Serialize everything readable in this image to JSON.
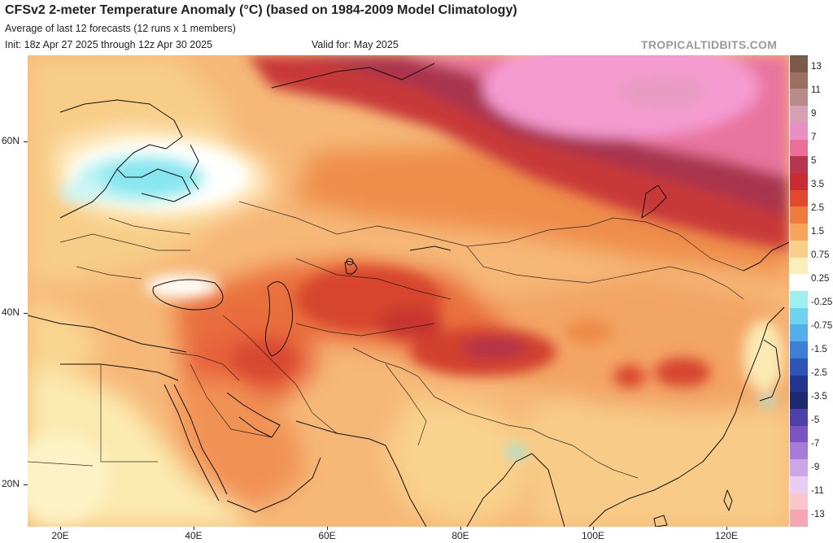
{
  "header": {
    "title": "CFSv2 2-meter Temperature Anomaly (°C) (based on 1984-2009 Model Climatology)",
    "subtitle": "Average of last 12 forecasts (12 runs x 1 members)",
    "init": "Init: 18z Apr 27 2025 through 12z Apr 30 2025",
    "valid": "Valid for: May 2025",
    "watermark": "TROPICALTIDBITS.COM"
  },
  "map": {
    "region": "Asia / Middle East",
    "lat_labels": [
      "60N",
      "40N",
      "20N"
    ],
    "lon_labels": [
      "20E",
      "40E",
      "60E",
      "80E",
      "100E",
      "120E"
    ]
  },
  "colorbar": {
    "labels": [
      "13",
      "11",
      "9",
      "7",
      "5",
      "3.5",
      "2.5",
      "1.5",
      "0.75",
      "0.25",
      "-0.25",
      "-0.75",
      "-1.5",
      "-2.5",
      "-3.5",
      "-5",
      "-7",
      "-9",
      "-11",
      "-13"
    ],
    "colors": [
      "#7a5a48",
      "#9b7060",
      "#b98a8a",
      "#d6a0b4",
      "#e98fc3",
      "#ec6f9a",
      "#b9354f",
      "#c82b32",
      "#e2482e",
      "#ee7a3e",
      "#f6a55c",
      "#f9d08b",
      "#fbefb8",
      "#ffffff",
      "#9ef0f0",
      "#6fd2ee",
      "#55aee9",
      "#3d7fd5",
      "#2d54b8",
      "#23358f",
      "#1f2a6e",
      "#4d40a8",
      "#7a55c2",
      "#a97bd8",
      "#cda6ea",
      "#e9cdf4",
      "#f8c6cb",
      "#f4a7b0"
    ]
  }
}
